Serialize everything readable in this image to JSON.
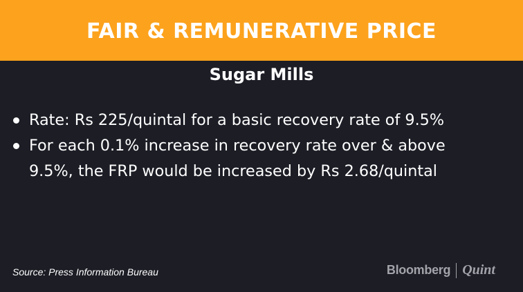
{
  "header": {
    "title": "FAIR & REMUNERATIVE PRICE"
  },
  "subtitle": "Sugar Mills",
  "bullets": [
    {
      "line1": "Rate: Rs 225/quintal for a basic recovery rate of 9.5%"
    },
    {
      "line1": "For each 0.1% increase in recovery rate over & above",
      "line2": "9.5%, the FRP would be increased by Rs 2.68/quintal"
    }
  ],
  "footer": {
    "source": "Source: Press Information Bureau",
    "brand_main": "Bloomberg",
    "brand_sub": "Quint"
  },
  "colors": {
    "header_bg": "#fca21c",
    "body_bg": "#1c1d25",
    "text": "#ffffff",
    "brand": "#a3a4aa"
  }
}
